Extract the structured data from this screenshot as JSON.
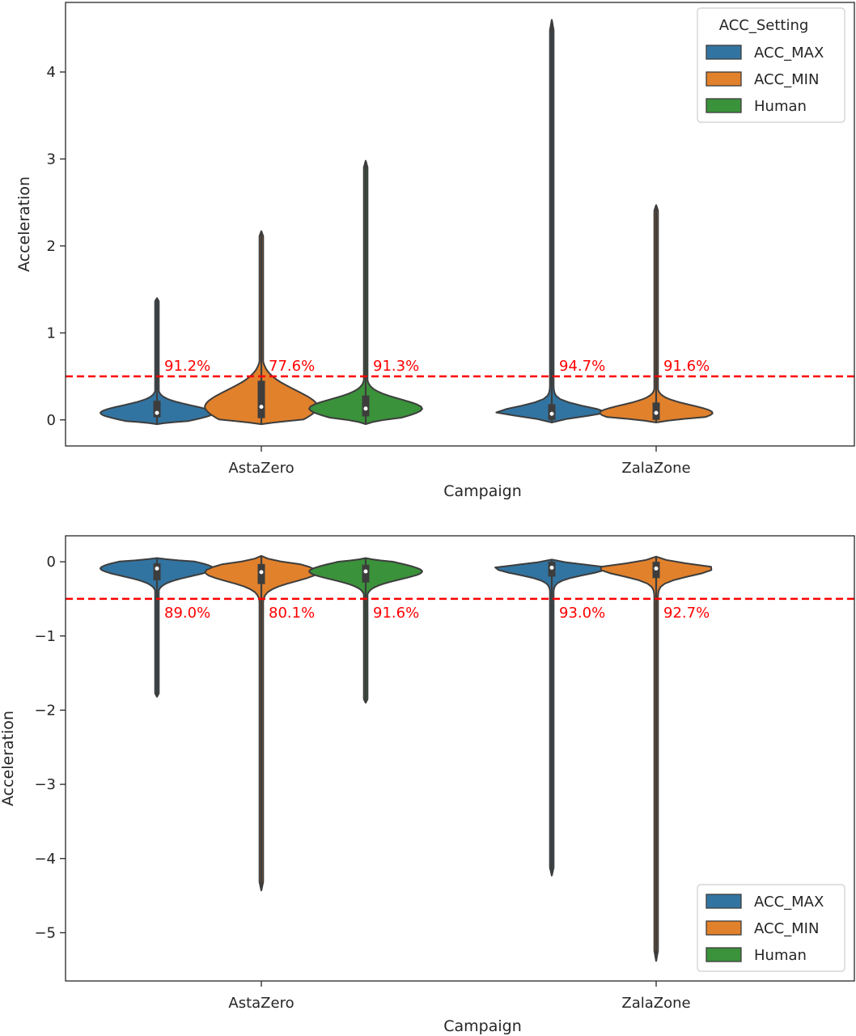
{
  "colors": {
    "ACC_MAX": "#3274a1",
    "ACC_MIN": "#e1812c",
    "Human": "#3a923a",
    "threshold": "#ff0000",
    "outline": "#3d3d3d"
  },
  "chart_data": [
    {
      "type": "violin",
      "xlabel": "Campaign",
      "ylabel": "Acceleration",
      "ylim": [
        -0.3,
        4.8
      ],
      "yticks": [
        "0",
        "1",
        "2",
        "3",
        "4"
      ],
      "ytick_values": [
        0,
        1,
        2,
        3,
        4
      ],
      "categories": [
        "AstaZero",
        "ZalaZone"
      ],
      "legend": {
        "title": "ACC_Setting",
        "position": "upper right",
        "entries": [
          "ACC_MAX",
          "ACC_MIN",
          "Human"
        ]
      },
      "threshold": 0.5,
      "violins": [
        {
          "category": "AstaZero",
          "series": "ACC_MAX",
          "min": -0.05,
          "max": 1.4,
          "q1": 0.03,
          "median": 0.08,
          "q3": 0.22,
          "label": "91.2%"
        },
        {
          "category": "AstaZero",
          "series": "ACC_MIN",
          "min": -0.05,
          "max": 2.17,
          "q1": 0.02,
          "median": 0.15,
          "q3": 0.45,
          "label": "77.6%"
        },
        {
          "category": "AstaZero",
          "series": "Human",
          "min": -0.05,
          "max": 2.98,
          "q1": 0.04,
          "median": 0.13,
          "q3": 0.28,
          "label": "91.3%"
        },
        {
          "category": "ZalaZone",
          "series": "ACC_MAX",
          "min": -0.03,
          "max": 4.6,
          "q1": 0.0,
          "median": 0.07,
          "q3": 0.18,
          "label": "94.7%"
        },
        {
          "category": "ZalaZone",
          "series": "ACC_MIN",
          "min": -0.03,
          "max": 2.47,
          "q1": 0.0,
          "median": 0.08,
          "q3": 0.2,
          "label": "91.6%"
        }
      ]
    },
    {
      "type": "violin",
      "xlabel": "Campaign",
      "ylabel": "Acceleration",
      "ylim": [
        -5.65,
        0.35
      ],
      "yticks": [
        "0",
        "−1",
        "−2",
        "−3",
        "−4",
        "−5"
      ],
      "ytick_values": [
        0,
        -1,
        -2,
        -3,
        -4,
        -5
      ],
      "categories": [
        "AstaZero",
        "ZalaZone"
      ],
      "legend": {
        "title": "",
        "position": "lower right",
        "entries": [
          "ACC_MAX",
          "ACC_MIN",
          "Human"
        ]
      },
      "threshold": -0.5,
      "violins": [
        {
          "category": "AstaZero",
          "series": "ACC_MAX",
          "min": -1.82,
          "max": 0.05,
          "q1": -0.25,
          "median": -0.09,
          "q3": -0.02,
          "label": "89.0%"
        },
        {
          "category": "AstaZero",
          "series": "ACC_MIN",
          "min": -4.43,
          "max": 0.08,
          "q1": -0.3,
          "median": -0.14,
          "q3": -0.03,
          "label": "80.1%"
        },
        {
          "category": "AstaZero",
          "series": "Human",
          "min": -1.9,
          "max": 0.05,
          "q1": -0.28,
          "median": -0.13,
          "q3": -0.04,
          "label": "91.6%"
        },
        {
          "category": "ZalaZone",
          "series": "ACC_MAX",
          "min": -4.23,
          "max": 0.03,
          "q1": -0.2,
          "median": -0.08,
          "q3": 0.0,
          "label": "93.0%"
        },
        {
          "category": "ZalaZone",
          "series": "ACC_MIN",
          "min": -5.38,
          "max": 0.07,
          "q1": -0.22,
          "median": -0.09,
          "q3": 0.0,
          "label": "92.7%"
        }
      ]
    }
  ]
}
